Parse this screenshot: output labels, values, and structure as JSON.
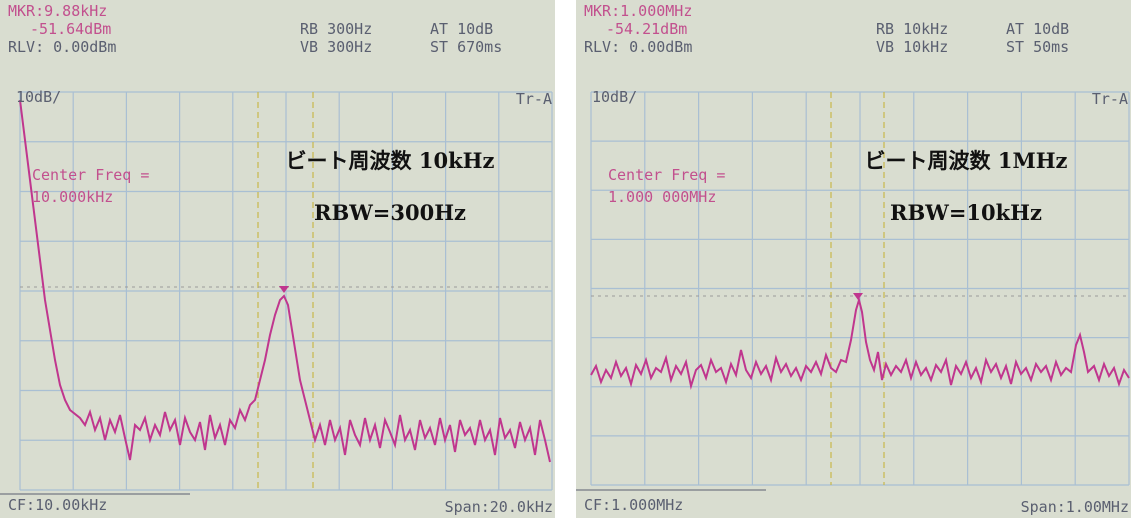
{
  "panels": [
    {
      "marker_freq": "MKR:9.88kHz",
      "marker_level": "-51.64dBm",
      "ref_level": "RLV: 0.00dBm",
      "rbw": "RB 300Hz",
      "vbw": "VB 300Hz",
      "atten": "AT 10dB",
      "sweep": "ST 670ms",
      "scale": "10dB/",
      "trace": "Tr-A",
      "center_label": "Center Freq =",
      "center_value": "10.000kHz",
      "caption_line1": "ビート周波数 10kHz",
      "caption_line2": "RBW=300Hz",
      "cf": "CF:10.00kHz",
      "span": "Span:20.0kHz"
    },
    {
      "marker_freq": "MKR:1.000MHz",
      "marker_level": "-54.21dBm",
      "ref_level": "RLV: 0.00dBm",
      "rbw": "RB 10kHz",
      "vbw": "VB 10kHz",
      "atten": "AT 10dB",
      "sweep": "ST 50ms",
      "scale": "10dB/",
      "trace": "Tr-A",
      "center_label": "Center Freq =",
      "center_value": "1.000 000MHz",
      "caption_line1": "ビート周波数 1MHz",
      "caption_line2": "RBW=10kHz",
      "cf": "CF:1.000MHz",
      "span": "Span:1.00MHz"
    }
  ]
}
